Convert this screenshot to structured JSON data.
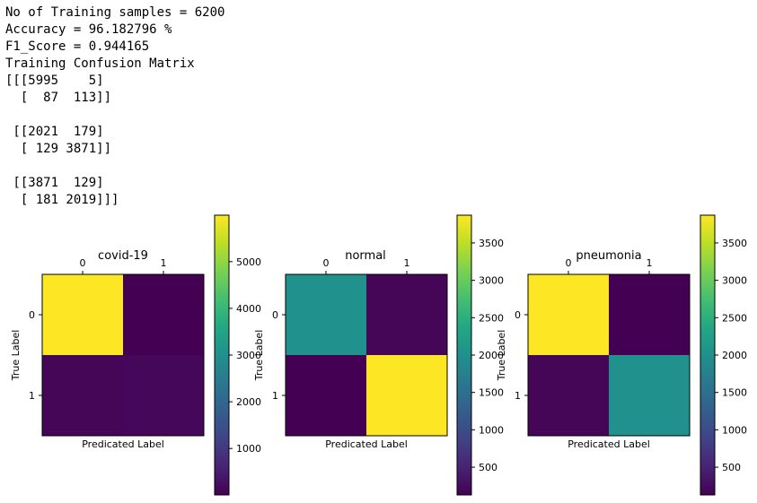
{
  "console": {
    "lines": [
      "No of Training samples = 6200",
      "Accuracy = 96.182796 %",
      "F1_Score = 0.944165",
      "Training Confusion Matrix",
      "[[[5995    5]",
      "  [  87  113]]",
      "",
      " [[2021  179]",
      "  [ 129 3871]]",
      "",
      " [[3871  129]",
      "  [ 181 2019]]]"
    ]
  },
  "chart_data": [
    {
      "type": "heatmap",
      "title": "covid-19",
      "xlabel": "Predicated Label",
      "ylabel": "True Label",
      "x_ticks": [
        "0",
        "1"
      ],
      "y_ticks": [
        "0",
        "1"
      ],
      "matrix": [
        [
          5995,
          5
        ],
        [
          87,
          113
        ]
      ],
      "colormap": "viridis",
      "colorbar": {
        "min": 5,
        "max": 5995,
        "ticks": [
          1000,
          2000,
          3000,
          4000,
          5000
        ]
      }
    },
    {
      "type": "heatmap",
      "title": "normal",
      "xlabel": "Predicated Label",
      "ylabel": "True Label",
      "x_ticks": [
        "0",
        "1"
      ],
      "y_ticks": [
        "0",
        "1"
      ],
      "matrix": [
        [
          2021,
          179
        ],
        [
          129,
          3871
        ]
      ],
      "colormap": "viridis",
      "colorbar": {
        "min": 129,
        "max": 3871,
        "ticks": [
          500,
          1000,
          1500,
          2000,
          2500,
          3000,
          3500
        ]
      }
    },
    {
      "type": "heatmap",
      "title": "pneumonia",
      "xlabel": "Predicated Label",
      "ylabel": "True Label",
      "x_ticks": [
        "0",
        "1"
      ],
      "y_ticks": [
        "0",
        "1"
      ],
      "matrix": [
        [
          3871,
          129
        ],
        [
          181,
          2019
        ]
      ],
      "colormap": "viridis",
      "colorbar": {
        "min": 129,
        "max": 3871,
        "ticks": [
          500,
          1000,
          1500,
          2000,
          2500,
          3000,
          3500
        ]
      }
    }
  ]
}
